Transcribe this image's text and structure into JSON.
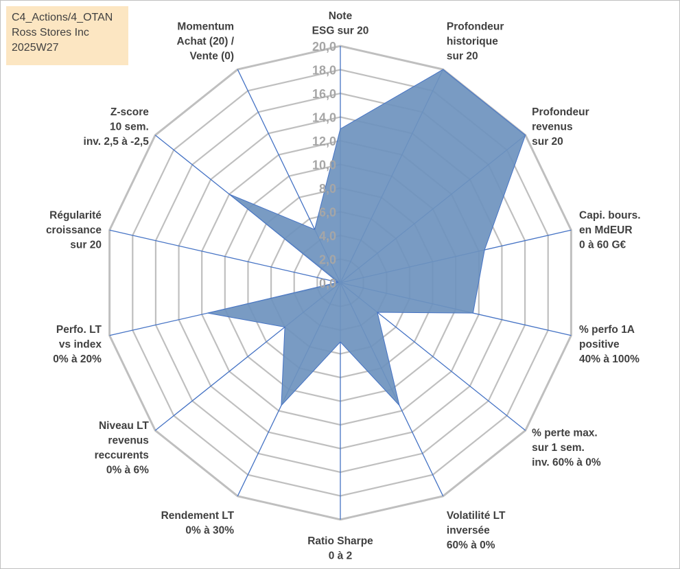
{
  "header": {
    "line1": "C4_Actions/4_OTAN",
    "line2": "Ross Stores Inc",
    "line3": "2025W27"
  },
  "colors": {
    "fill": "#6e93be",
    "stroke": "#4472c4",
    "grid": "#bfbfbf",
    "info_box": "#fce6c2"
  },
  "chart_data": {
    "type": "radar",
    "title": "",
    "rlim": [
      0,
      20
    ],
    "ticks": [
      0,
      2,
      4,
      6,
      8,
      10,
      12,
      14,
      16,
      18,
      20
    ],
    "tick_labels": [
      "0,0",
      "2,0",
      "4,0",
      "6,0",
      "8,0",
      "10,0",
      "12,0",
      "14,0",
      "16,0",
      "18,0",
      "20,0"
    ],
    "categories": [
      [
        "Note",
        "ESG sur 20"
      ],
      [
        "Profondeur",
        "historique",
        "sur 20"
      ],
      [
        "Profondeur",
        "revenus",
        "sur 20"
      ],
      [
        "Capi. bours.",
        "en MdEUR",
        "0 à 60 G€"
      ],
      [
        "% perfo 1A",
        "positive",
        "40% à 100%"
      ],
      [
        "% perte max.",
        "sur 1 sem.",
        "inv. 60% à 0%"
      ],
      [
        "Volatilité LT",
        "inversée",
        "60% à 0%"
      ],
      [
        "Ratio Sharpe",
        "0 à 2"
      ],
      [
        "Rendement LT",
        "0% à 30%"
      ],
      [
        "Niveau LT",
        "revenus",
        "reccurents",
        "0% à 6%"
      ],
      [
        "Perfo. LT",
        "vs index",
        "0% à 20%"
      ],
      [
        "Régularité",
        "croissance",
        "sur 20"
      ],
      [
        "Z-score",
        "10 sem.",
        "inv. 2,5 à -2,5"
      ],
      [
        "Momentum",
        "Achat (20) /",
        "Vente (0)"
      ]
    ],
    "series": [
      {
        "values": [
          13.0,
          20.0,
          20.0,
          12.5,
          11.5,
          4.0,
          11.5,
          5.0,
          11.5,
          6.0,
          11.5,
          0.2,
          12.0,
          5.0
        ]
      }
    ],
    "grid": true,
    "legend": "none"
  }
}
